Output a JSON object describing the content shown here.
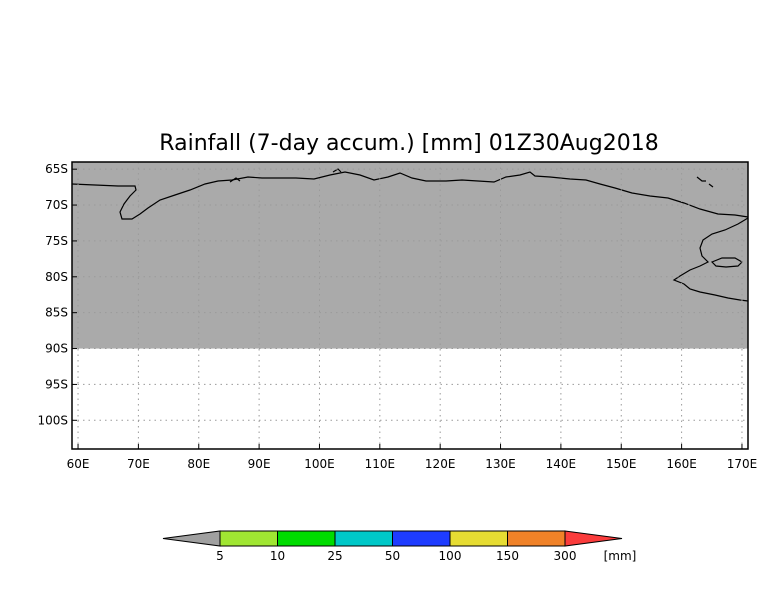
{
  "title": "Rainfall (7-day accum.) [mm] 01Z30Aug2018",
  "map": {
    "lon_range": [
      59,
      171
    ],
    "lat_range": [
      -104,
      -64
    ],
    "land_lat_limit": -90,
    "land_color": "#aaaaaa",
    "ocean_color": "#ffffff",
    "x_ticks": [
      "60E",
      "70E",
      "80E",
      "90E",
      "100E",
      "110E",
      "120E",
      "130E",
      "140E",
      "150E",
      "160E",
      "170E"
    ],
    "y_ticks": [
      "65S",
      "70S",
      "75S",
      "80S",
      "85S",
      "90S",
      "95S",
      "100S"
    ],
    "grid": true
  },
  "legend": {
    "unit": "[mm]",
    "thresholds": [
      "5",
      "10",
      "25",
      "50",
      "100",
      "150",
      "300"
    ],
    "colors": [
      "#a0a0a0",
      "#a0e632",
      "#00dc00",
      "#00c8c8",
      "#1e3cff",
      "#e6dc32",
      "#f08228",
      "#fa3c3c"
    ]
  }
}
